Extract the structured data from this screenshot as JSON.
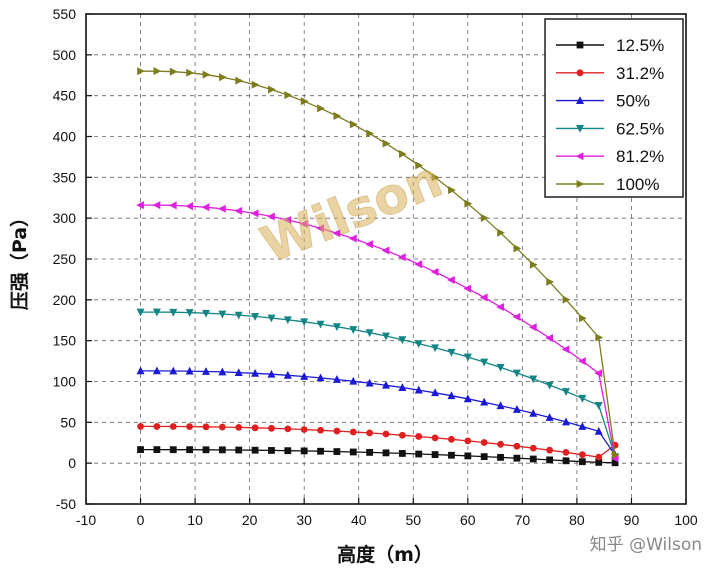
{
  "watermark": "Wilson",
  "credit": "知乎 @Wilson",
  "chart_data": {
    "type": "line",
    "xlabel": "高度（m）",
    "ylabel": "压强（Pa）",
    "xlim": [
      -10,
      100
    ],
    "ylim": [
      -50,
      550
    ],
    "xticks": [
      -10,
      0,
      10,
      20,
      30,
      40,
      50,
      60,
      70,
      80,
      90,
      100
    ],
    "yticks": [
      -50,
      0,
      50,
      100,
      150,
      200,
      250,
      300,
      350,
      400,
      450,
      500,
      550
    ],
    "grid": true,
    "legend_position": "top-right",
    "x": [
      0,
      3,
      6,
      9,
      12,
      15,
      18,
      21,
      24,
      27,
      30,
      33,
      36,
      39,
      42,
      45,
      48,
      51,
      54,
      57,
      60,
      63,
      66,
      69,
      72,
      75,
      78,
      81,
      84,
      87
    ],
    "series": [
      {
        "name": "12.5%",
        "color": "#111111",
        "marker": "square",
        "values": [
          16.6,
          16.6,
          16.5,
          16.5,
          16.4,
          16.3,
          16.1,
          15.9,
          15.6,
          15.3,
          15.0,
          14.6,
          14.2,
          13.7,
          13.2,
          12.6,
          11.9,
          11.2,
          10.5,
          9.7,
          8.9,
          8.0,
          7.1,
          6.1,
          5.1,
          4.0,
          2.9,
          1.8,
          1.0,
          0.5
        ]
      },
      {
        "name": "31.2%",
        "color": "#e02020",
        "marker": "circle",
        "values": [
          45.0,
          45.0,
          44.9,
          44.8,
          44.5,
          44.2,
          43.8,
          43.3,
          42.7,
          42.0,
          41.2,
          40.3,
          39.3,
          38.2,
          37.0,
          35.7,
          34.2,
          32.7,
          31.0,
          29.2,
          27.3,
          25.3,
          23.1,
          20.8,
          18.4,
          15.9,
          13.2,
          10.4,
          7.4,
          22.0
        ]
      },
      {
        "name": "50%",
        "color": "#1a1ad6",
        "marker": "triangle-up",
        "values": [
          113.0,
          113.0,
          112.9,
          112.7,
          112.2,
          111.7,
          110.9,
          110.0,
          108.9,
          107.6,
          106.1,
          104.4,
          102.5,
          100.3,
          98.0,
          95.4,
          92.6,
          89.5,
          86.2,
          82.6,
          78.8,
          74.7,
          70.4,
          65.8,
          61.0,
          55.9,
          50.5,
          44.9,
          39.0,
          10.0
        ]
      },
      {
        "name": "62.5%",
        "color": "#148585",
        "marker": "triangle-down",
        "values": [
          185.0,
          185.0,
          184.8,
          184.4,
          183.6,
          182.6,
          181.3,
          179.7,
          177.8,
          175.6,
          173.1,
          170.3,
          167.1,
          163.6,
          159.8,
          155.7,
          151.2,
          146.4,
          141.3,
          135.8,
          130.0,
          123.8,
          117.3,
          110.4,
          103.2,
          95.6,
          87.7,
          79.4,
          70.8,
          8.0
        ]
      },
      {
        "name": "81.2%",
        "color": "#e020e0",
        "marker": "triangle-left",
        "values": [
          316.0,
          316.0,
          315.7,
          314.8,
          313.4,
          311.5,
          308.9,
          305.8,
          302.1,
          297.8,
          293.0,
          287.6,
          281.6,
          275.1,
          268.0,
          260.4,
          252.2,
          243.5,
          234.2,
          224.3,
          213.8,
          202.8,
          191.3,
          179.1,
          166.4,
          153.2,
          139.4,
          125.0,
          110.1,
          6.0
        ]
      },
      {
        "name": "100%",
        "color": "#7d7d1e",
        "marker": "triangle-right",
        "values": [
          480.0,
          480.0,
          479.4,
          478.0,
          475.7,
          472.5,
          468.4,
          463.4,
          457.5,
          450.7,
          443.1,
          434.5,
          425.1,
          414.8,
          403.6,
          391.5,
          378.5,
          364.7,
          349.9,
          334.3,
          317.8,
          300.4,
          282.1,
          263.0,
          242.9,
          222.0,
          200.2,
          177.5,
          153.9,
          10.0
        ]
      }
    ]
  }
}
